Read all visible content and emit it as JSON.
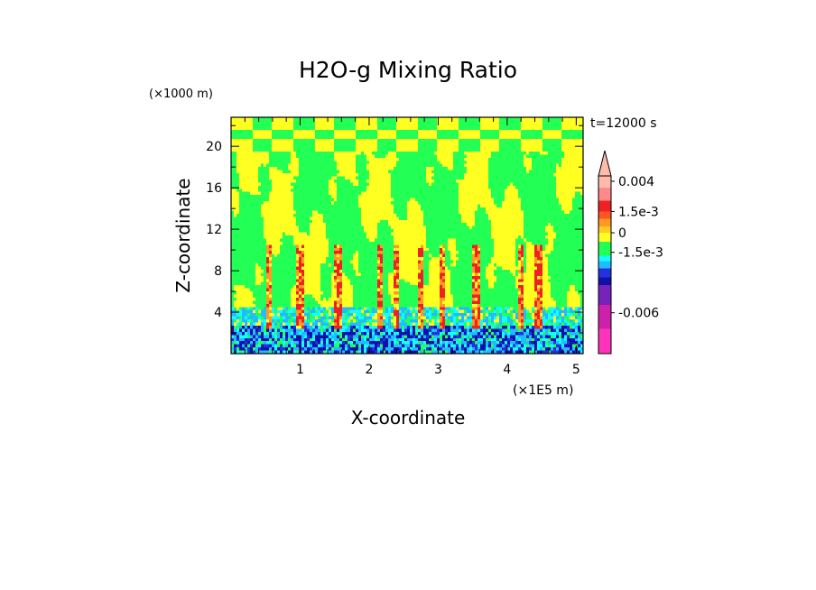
{
  "chart_data": {
    "type": "heatmap",
    "title": "H2O-g Mixing Ratio",
    "xlabel": "X-coordinate",
    "ylabel": "Z-coordinate",
    "x_unit": "(×1E5 m)",
    "y_unit": "(×1000 m)",
    "time_label": "t=12000 s",
    "xlim": [
      0,
      5.1
    ],
    "ylim": [
      0,
      22.8
    ],
    "x_ticks": [
      1,
      2,
      3,
      4,
      5
    ],
    "x_tick_labels": [
      "1",
      "2",
      "3",
      "4",
      "5"
    ],
    "y_ticks": [
      4,
      8,
      12,
      16,
      20
    ],
    "y_tick_labels": [
      "4",
      "8",
      "12",
      "16",
      "20"
    ],
    "colorbar": {
      "colors": [
        "#ff33bb",
        "#cc22aa",
        "#7722bb",
        "#1111aa",
        "#2233dd",
        "#22bbff",
        "#11ffff",
        "#22ff55",
        "#ffff22",
        "#ffcc22",
        "#ff9922",
        "#ff5522",
        "#ee2222",
        "#ff8888",
        "#ffbbaa"
      ],
      "tick_labels": [
        "0.004",
        "1.5e-3",
        "0",
        "-1.5e-3",
        "-0.006"
      ],
      "tick_values": [
        0.004,
        0.0015,
        0,
        -0.0015,
        -0.006
      ]
    }
  }
}
